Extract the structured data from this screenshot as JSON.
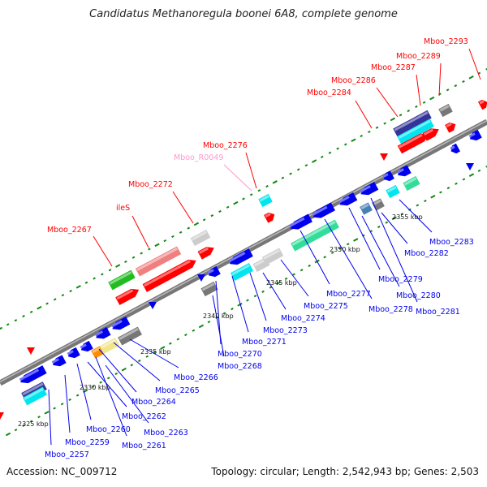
{
  "title": "Candidatus Methanoregula boonei 6A8, complete genome",
  "footer": {
    "accession": "Accession: NC_009712",
    "topology": "Topology: circular; Length: 2,542,943 bp; Genes: 2,503"
  },
  "kbp_ticks": [
    "2325 kbp",
    "2330 kbp",
    "2335 kbp",
    "2340 kbp",
    "2345 kbp",
    "2350 kbp",
    "2355 kbp"
  ],
  "colors": {
    "red": "#ff0000",
    "blue": "#0000ee",
    "cyan": "#00e5ee",
    "green": "#22bb22",
    "salmon": "#f08080",
    "grey": "#777777",
    "lightgrey": "#cccccc",
    "navy": "#333399",
    "steelblue": "#4682b4",
    "aquamarine": "#33dd99",
    "khaki": "#f0e68c",
    "orange": "#ff8c00",
    "pink": "#ff99cc",
    "backbone": "#888888",
    "tick": "#118811"
  },
  "labels_top": [
    {
      "text": "Mboo_2267",
      "color": "red"
    },
    {
      "text": "ileS",
      "color": "red"
    },
    {
      "text": "Mboo_2272",
      "color": "red"
    },
    {
      "text": "Mboo_R0049",
      "color": "pink"
    },
    {
      "text": "Mboo_2276",
      "color": "red"
    },
    {
      "text": "Mboo_2284",
      "color": "red"
    },
    {
      "text": "Mboo_2286",
      "color": "red"
    },
    {
      "text": "Mboo_2287",
      "color": "red"
    },
    {
      "text": "Mboo_2289",
      "color": "red"
    },
    {
      "text": "Mboo_2293",
      "color": "red"
    }
  ],
  "labels_bottom": [
    {
      "text": "Mboo_2257"
    },
    {
      "text": "Mboo_2259"
    },
    {
      "text": "Mboo_2260"
    },
    {
      "text": "Mboo_2261"
    },
    {
      "text": "Mboo_2262"
    },
    {
      "text": "Mboo_2263"
    },
    {
      "text": "Mboo_2264"
    },
    {
      "text": "Mboo_2265"
    },
    {
      "text": "Mboo_2266"
    },
    {
      "text": "Mboo_2268"
    },
    {
      "text": "Mboo_2270"
    },
    {
      "text": "Mboo_2271"
    },
    {
      "text": "Mboo_2273"
    },
    {
      "text": "Mboo_2274"
    },
    {
      "text": "Mboo_2275"
    },
    {
      "text": "Mboo_2277"
    },
    {
      "text": "Mboo_2278"
    },
    {
      "text": "Mboo_2279"
    },
    {
      "text": "Mboo_2280"
    },
    {
      "text": "Mboo_2281"
    },
    {
      "text": "Mboo_2282"
    },
    {
      "text": "Mboo_2283"
    }
  ]
}
